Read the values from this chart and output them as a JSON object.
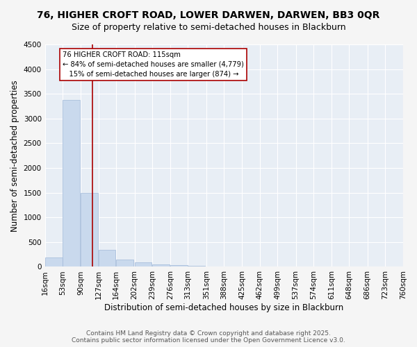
{
  "title_line1": "76, HIGHER CROFT ROAD, LOWER DARWEN, DARWEN, BB3 0QR",
  "title_line2": "Size of property relative to semi-detached houses in Blackburn",
  "xlabel": "Distribution of semi-detached houses by size in Blackburn",
  "ylabel": "Number of semi-detached properties",
  "bar_color": "#c9d9ed",
  "bar_edge_color": "#a0b8d8",
  "background_color": "#e8eef5",
  "grid_color": "#ffffff",
  "vline_color": "#aa0000",
  "vline_x": 115,
  "annotation_text": "76 HIGHER CROFT ROAD: 115sqm\n← 84% of semi-detached houses are smaller (4,779)\n   15% of semi-detached houses are larger (874) →",
  "annotation_box_color": "#ffffff",
  "annotation_box_edge": "#aa0000",
  "categories": [
    "16sqm",
    "53sqm",
    "90sqm",
    "127sqm",
    "164sqm",
    "202sqm",
    "239sqm",
    "276sqm",
    "313sqm",
    "351sqm",
    "388sqm",
    "425sqm",
    "462sqm",
    "499sqm",
    "537sqm",
    "574sqm",
    "611sqm",
    "648sqm",
    "686sqm",
    "723sqm",
    "760sqm"
  ],
  "bin_edges": [
    16,
    53,
    90,
    127,
    164,
    202,
    239,
    276,
    313,
    351,
    388,
    425,
    462,
    499,
    537,
    574,
    611,
    648,
    686,
    723,
    760
  ],
  "values": [
    190,
    3370,
    1500,
    340,
    145,
    90,
    55,
    30,
    20,
    5,
    0,
    0,
    0,
    0,
    0,
    0,
    0,
    0,
    0,
    0,
    0
  ],
  "ylim": [
    0,
    4500
  ],
  "yticks": [
    0,
    500,
    1000,
    1500,
    2000,
    2500,
    3000,
    3500,
    4000,
    4500
  ],
  "footer_text": "Contains HM Land Registry data © Crown copyright and database right 2025.\nContains public sector information licensed under the Open Government Licence v3.0.",
  "title_fontsize": 10,
  "subtitle_fontsize": 9,
  "tick_fontsize": 7.5,
  "label_fontsize": 8.5
}
